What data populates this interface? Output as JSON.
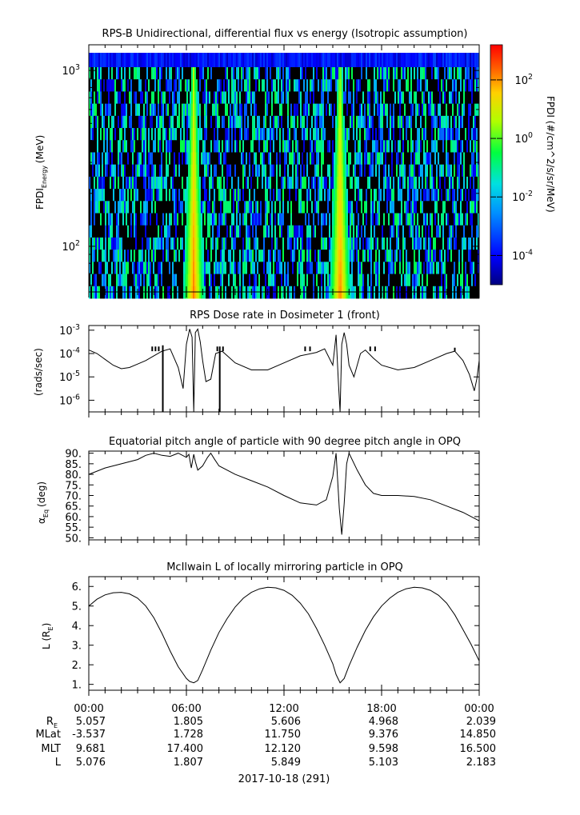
{
  "chart_data": [
    {
      "type": "heatmap",
      "title": "RPS-B  Unidirectional, differential flux vs energy (Isotropic assumption)",
      "ylabel": "FPDI",
      "ylabel_sub": "Energy",
      "ylabel_unit": "(MeV)",
      "yscale": "log",
      "ylim": [
        55,
        1400
      ],
      "yticks": [
        {
          "value": 100,
          "base": "10",
          "exp": "2"
        },
        {
          "value": 1000,
          "base": "10",
          "exp": "3"
        }
      ],
      "xlim_hours": [
        0,
        24
      ],
      "energy_rows": 19,
      "background_levels": [
        -4.5,
        -3.5,
        -2.5,
        -1.5,
        -1
      ],
      "belt_crossings_hours": [
        6.45,
        15.45
      ],
      "colorbar": {
        "label": "FPDI (#/cm^2/s/sr/MeV)",
        "log_range": [
          -5,
          3.2
        ],
        "ticks": [
          {
            "base": "10",
            "exp": "2",
            "value": 2
          },
          {
            "base": "10",
            "exp": "0",
            "value": 0
          },
          {
            "base": "10",
            "exp": "-2",
            "value": -2
          },
          {
            "base": "10",
            "exp": "-4",
            "value": -4
          }
        ]
      }
    },
    {
      "type": "line",
      "title": "RPS  Dose rate in Dosimeter 1 (front)",
      "ylabel": "(rads/sec)",
      "yscale": "log",
      "ylim_log10": [
        -6.5,
        -2.8
      ],
      "yticks": [
        {
          "value": -3,
          "base": "10",
          "exp": "-3"
        },
        {
          "value": -4,
          "base": "10",
          "exp": "-4"
        },
        {
          "value": -5,
          "base": "10",
          "exp": "-5"
        },
        {
          "value": -6,
          "base": "10",
          "exp": "-6"
        }
      ],
      "x_hours": [
        0,
        0.5,
        1,
        1.5,
        2,
        2.5,
        3,
        3.5,
        4,
        4.5,
        5,
        5.5,
        5.8,
        6.0,
        6.2,
        6.35,
        6.45,
        6.55,
        6.7,
        6.85,
        7.0,
        7.2,
        7.5,
        7.8,
        8.2,
        9,
        10,
        11,
        12,
        13,
        14,
        14.5,
        15.0,
        15.2,
        15.35,
        15.45,
        15.55,
        15.7,
        15.85,
        16.0,
        16.3,
        16.7,
        17.0,
        17.5,
        18,
        19,
        20,
        21,
        22,
        22.5,
        23,
        23.4,
        23.7,
        23.85,
        24
      ],
      "values_log10": [
        -3.85,
        -4.0,
        -4.25,
        -4.5,
        -4.65,
        -4.6,
        -4.45,
        -4.3,
        -4.1,
        -3.9,
        -3.8,
        -4.6,
        -5.5,
        -3.6,
        -2.95,
        -3.3,
        -6.5,
        -3.1,
        -2.95,
        -3.5,
        -4.3,
        -5.2,
        -5.1,
        -4.0,
        -3.9,
        -4.4,
        -4.7,
        -4.7,
        -4.4,
        -4.1,
        -3.95,
        -3.8,
        -4.5,
        -3.2,
        -5.3,
        -6.5,
        -3.6,
        -3.1,
        -3.6,
        -4.5,
        -5.0,
        -4.0,
        -3.85,
        -4.2,
        -4.5,
        -4.7,
        -4.6,
        -4.3,
        -4.0,
        -3.9,
        -4.3,
        -4.9,
        -5.6,
        -5.1,
        -4.3
      ],
      "spikes": [
        {
          "hour": 3.9,
          "top_log10": -3.7,
          "bottom_log10": -3.9
        },
        {
          "hour": 4.1,
          "top_log10": -3.7,
          "bottom_log10": -3.9
        },
        {
          "hour": 4.3,
          "top_log10": -3.7,
          "bottom_log10": -3.9
        },
        {
          "hour": 4.55,
          "top_log10": -3.65,
          "bottom_log10": -6.5
        },
        {
          "hour": 7.9,
          "top_log10": -3.7,
          "bottom_log10": -3.9
        },
        {
          "hour": 8.05,
          "top_log10": -3.7,
          "bottom_log10": -6.5
        },
        {
          "hour": 8.25,
          "top_log10": -3.7,
          "bottom_log10": -3.9
        },
        {
          "hour": 13.3,
          "top_log10": -3.7,
          "bottom_log10": -3.9
        },
        {
          "hour": 13.6,
          "top_log10": -3.7,
          "bottom_log10": -3.9
        },
        {
          "hour": 17.3,
          "top_log10": -3.7,
          "bottom_log10": -3.9
        },
        {
          "hour": 17.6,
          "top_log10": -3.7,
          "bottom_log10": -3.9
        },
        {
          "hour": 22.5,
          "top_log10": -3.75,
          "bottom_log10": -3.9
        }
      ]
    },
    {
      "type": "line",
      "title": "Equatorial pitch angle of particle with 90 degree pitch angle in OPQ",
      "ylabel": "α",
      "ylabel_sub": "Eq",
      "ylabel_unit": "(deg)",
      "ylim": [
        49,
        91
      ],
      "yticks": [
        50,
        55,
        60,
        65,
        70,
        75,
        80,
        85,
        90
      ],
      "tick_labels": [
        "50.",
        "55.",
        "60.",
        "65.",
        "70.",
        "75.",
        "80.",
        "85.",
        "90."
      ],
      "x_hours": [
        0,
        1,
        2,
        3,
        3.5,
        4.0,
        4.5,
        5.0,
        5.5,
        6.0,
        6.15,
        6.3,
        6.45,
        6.55,
        6.7,
        7.0,
        7.3,
        7.5,
        7.7,
        8.0,
        9,
        10,
        11,
        12,
        13,
        14,
        14.6,
        15.0,
        15.2,
        15.4,
        15.55,
        15.7,
        15.85,
        16.0,
        16.5,
        17.0,
        17.5,
        18,
        19,
        20,
        21,
        22,
        23,
        24
      ],
      "values": [
        80,
        83,
        85,
        87,
        89,
        90,
        89,
        88.5,
        90,
        88,
        89.5,
        83,
        89.5,
        86,
        82,
        84,
        88,
        90,
        87.5,
        84,
        80,
        77,
        74,
        70,
        66.5,
        65.5,
        68,
        79,
        90,
        64,
        51.5,
        66,
        85,
        90,
        82,
        75,
        71,
        70,
        70,
        69.5,
        68,
        65,
        62,
        58
      ]
    },
    {
      "type": "line",
      "title": "McIlwain L of locally mirroring particle in OPQ",
      "ylabel": "L (R",
      "ylabel_sub": "E",
      "ylabel_close": ")",
      "ylim": [
        0.7,
        6.5
      ],
      "yticks": [
        1,
        2,
        3,
        4,
        5,
        6
      ],
      "tick_labels": [
        "1.",
        "2.",
        "3.",
        "4.",
        "5.",
        "6."
      ],
      "x_hours": [
        0,
        0.5,
        1,
        1.5,
        2,
        2.5,
        3,
        3.5,
        4,
        4.5,
        5,
        5.5,
        6,
        6.2,
        6.45,
        6.7,
        7,
        7.5,
        8,
        8.5,
        9,
        9.5,
        10,
        10.5,
        11,
        11.5,
        12,
        12.5,
        13,
        13.5,
        14,
        14.5,
        15,
        15.2,
        15.45,
        15.7,
        16,
        16.5,
        17,
        17.5,
        18,
        18.5,
        19,
        19.5,
        20,
        20.5,
        21,
        21.5,
        22,
        22.5,
        23,
        23.5,
        24
      ],
      "values": [
        5.0,
        5.35,
        5.57,
        5.68,
        5.7,
        5.62,
        5.4,
        5.0,
        4.4,
        3.6,
        2.7,
        1.9,
        1.3,
        1.15,
        1.08,
        1.2,
        1.75,
        2.75,
        3.65,
        4.35,
        4.95,
        5.4,
        5.7,
        5.88,
        5.96,
        5.93,
        5.8,
        5.55,
        5.15,
        4.6,
        3.85,
        3.0,
        2.05,
        1.5,
        1.08,
        1.3,
        1.95,
        2.9,
        3.75,
        4.45,
        5.0,
        5.4,
        5.7,
        5.88,
        5.96,
        5.93,
        5.8,
        5.55,
        5.15,
        4.55,
        3.8,
        3.05,
        2.2
      ]
    }
  ],
  "x_axis": {
    "tick_labels": [
      "00:00",
      "06:00",
      "12:00",
      "18:00",
      "00:00"
    ],
    "tick_hours": [
      0,
      6,
      12,
      18,
      24
    ],
    "date_label": "2017-10-18 (291)"
  },
  "ephemeris": {
    "row_labels": [
      {
        "base": "R",
        "sub": "E"
      },
      {
        "base": "MLat",
        "sub": ""
      },
      {
        "base": "MLT",
        "sub": ""
      },
      {
        "base": "L",
        "sub": ""
      }
    ],
    "columns": [
      [
        "5.057",
        "-3.537",
        "9.681",
        "5.076"
      ],
      [
        "1.805",
        "1.728",
        "17.400",
        "1.807"
      ],
      [
        "5.606",
        "11.750",
        "12.120",
        "5.849"
      ],
      [
        "4.968",
        "9.376",
        "9.598",
        "5.103"
      ],
      [
        "2.039",
        "14.850",
        "16.500",
        "2.183"
      ]
    ]
  }
}
